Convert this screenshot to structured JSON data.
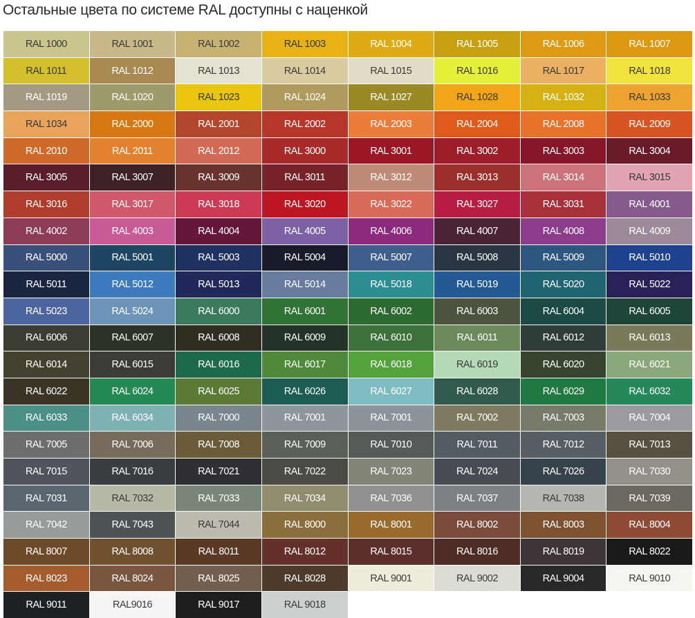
{
  "title": "Остальные цвета по системе RAL доступны с наценкой",
  "cells": [
    [
      "RAL 1000",
      "#c9c58c",
      1
    ],
    [
      "RAL 1001",
      "#c9b98a",
      1
    ],
    [
      "RAL 1002",
      "#c8b273",
      1
    ],
    [
      "RAL 1003",
      "#e8b216",
      1
    ],
    [
      "RAL 1004",
      "#dfab14",
      0
    ],
    [
      "RAL 1005",
      "#c6a011",
      0
    ],
    [
      "RAL 1006",
      "#dc9b13",
      0
    ],
    [
      "RAL 1007",
      "#de9710",
      0
    ],
    [
      "RAL 1011",
      "#d3c02c",
      1
    ],
    [
      "RAL 1012",
      "#a98852",
      0
    ],
    [
      "RAL 1013",
      "#e6e2d1",
      1
    ],
    [
      "RAL 1014",
      "#dacba0",
      1
    ],
    [
      "RAL 1015",
      "#e3dcc7",
      1
    ],
    [
      "RAL 1016",
      "#e5f03a",
      1
    ],
    [
      "RAL 1017",
      "#ecb063",
      1
    ],
    [
      "RAL 1018",
      "#f1e33c",
      1
    ],
    [
      "RAL 1019",
      "#a49a83",
      0
    ],
    [
      "RAL 1020",
      "#9d9a6c",
      0
    ],
    [
      "RAL 1023",
      "#eac612",
      1
    ],
    [
      "RAL 1024",
      "#b09a5e",
      0
    ],
    [
      "RAL 1027",
      "#9a8a26",
      0
    ],
    [
      "RAL 1028",
      "#f3a518",
      1
    ],
    [
      "RAL 1032",
      "#d6b114",
      0
    ],
    [
      "RAL 1033",
      "#eea331",
      1
    ],
    [
      "RAL 1034",
      "#e7a45a",
      1
    ],
    [
      "RAL 2000",
      "#d7770f",
      0
    ],
    [
      "RAL 2001",
      "#b4472b",
      0
    ],
    [
      "RAL 2002",
      "#b8352a",
      0
    ],
    [
      "RAL 2003",
      "#ec7c39",
      0
    ],
    [
      "RAL 2004",
      "#de5a1d",
      0
    ],
    [
      "RAL 2008",
      "#e9722a",
      0
    ],
    [
      "RAL 2009",
      "#d95423",
      0
    ],
    [
      "RAL 2010",
      "#d06a2b",
      0
    ],
    [
      "RAL 2011",
      "#e3812f",
      0
    ],
    [
      "RAL 2012",
      "#d26a55",
      0
    ],
    [
      "RAL 3000",
      "#a82a29",
      0
    ],
    [
      "RAL 3001",
      "#9b1726",
      0
    ],
    [
      "RAL 3002",
      "#9e1d2b",
      0
    ],
    [
      "RAL 3003",
      "#861527",
      0
    ],
    [
      "RAL 3004",
      "#6b1a2a",
      0
    ],
    [
      "RAL 3005",
      "#5a1e2a",
      0
    ],
    [
      "RAL 3007",
      "#3d2125",
      0
    ],
    [
      "RAL 3009",
      "#6a342e",
      0
    ],
    [
      "RAL 3011",
      "#772328",
      0
    ],
    [
      "RAL 3012",
      "#c08b76",
      0
    ],
    [
      "RAL 3013",
      "#9c2f2c",
      0
    ],
    [
      "RAL 3014",
      "#cc737a",
      0
    ],
    [
      "RAL 3015",
      "#e2a3b2",
      1
    ],
    [
      "RAL 3016",
      "#b03c2e",
      0
    ],
    [
      "RAL 3017",
      "#d1576a",
      0
    ],
    [
      "RAL 3018",
      "#cc3b53",
      0
    ],
    [
      "RAL 3020",
      "#be1522",
      0
    ],
    [
      "RAL 3022",
      "#d86a57",
      0
    ],
    [
      "RAL 3027",
      "#b71d42",
      0
    ],
    [
      "RAL 3031",
      "#a8303a",
      0
    ],
    [
      "RAL 4001",
      "#875a8e",
      0
    ],
    [
      "RAL 4002",
      "#8e3b55",
      0
    ],
    [
      "RAL 4003",
      "#c95a98",
      0
    ],
    [
      "RAL 4004",
      "#65173a",
      0
    ],
    [
      "RAL 4005",
      "#7d61a6",
      0
    ],
    [
      "RAL 4006",
      "#8e2a7e",
      0
    ],
    [
      "RAL 4007",
      "#4a2337",
      0
    ],
    [
      "RAL 4008",
      "#8b3d8c",
      0
    ],
    [
      "RAL 4009",
      "#9c8a98",
      0
    ],
    [
      "RAL 5000",
      "#38507a",
      0
    ],
    [
      "RAL 5001",
      "#1f4564",
      0
    ],
    [
      "RAL 5003",
      "#1f3160",
      0
    ],
    [
      "RAL 5004",
      "#1a1b2a",
      0
    ],
    [
      "RAL 5007",
      "#3e5f8e",
      0
    ],
    [
      "RAL 5008",
      "#2b3541",
      0
    ],
    [
      "RAL 5009",
      "#2d5780",
      0
    ],
    [
      "RAL 5010",
      "#1f4290",
      0
    ],
    [
      "RAL 5011",
      "#1a2542",
      0
    ],
    [
      "RAL 5012",
      "#3d7bbf",
      0
    ],
    [
      "RAL 5013",
      "#22295a",
      0
    ],
    [
      "RAL 5014",
      "#687ca0",
      0
    ],
    [
      "RAL 5018",
      "#2c8d92",
      0
    ],
    [
      "RAL 5019",
      "#235a93",
      0
    ],
    [
      "RAL 5020",
      "#1f6470",
      0
    ],
    [
      "RAL 5022",
      "#2b2159",
      0
    ],
    [
      "RAL 5023",
      "#4c659f",
      0
    ],
    [
      "RAL 5024",
      "#6e93b8",
      0
    ],
    [
      "RAL 6000",
      "#3a7a5d",
      0
    ],
    [
      "RAL 6001",
      "#2f7435",
      0
    ],
    [
      "RAL 6002",
      "#2d6a2f",
      0
    ],
    [
      "RAL 6003",
      "#4c5440",
      0
    ],
    [
      "RAL 6004",
      "#1b4a45",
      0
    ],
    [
      "RAL 6005",
      "#1d4637",
      0
    ],
    [
      "RAL 6006",
      "#3b3d33",
      0
    ],
    [
      "RAL 6007",
      "#2a3325",
      0
    ],
    [
      "RAL 6008",
      "#302e22",
      0
    ],
    [
      "RAL 6009",
      "#243327",
      0
    ],
    [
      "RAL 6010",
      "#3c7139",
      0
    ],
    [
      "RAL 6011",
      "#6a8a5c",
      0
    ],
    [
      "RAL 6012",
      "#2e3c3a",
      0
    ],
    [
      "RAL 6013",
      "#7a7a5a",
      0
    ],
    [
      "RAL 6014",
      "#45412f",
      0
    ],
    [
      "RAL 6015",
      "#3a3d35",
      0
    ],
    [
      "RAL 6016",
      "#1c6a4a",
      0
    ],
    [
      "RAL 6017",
      "#4e8a3a",
      0
    ],
    [
      "RAL 6018",
      "#52a33c",
      0
    ],
    [
      "RAL 6019",
      "#b5dab5",
      1
    ],
    [
      "RAL 6020",
      "#37452f",
      0
    ],
    [
      "RAL 6021",
      "#8aa77c",
      0
    ],
    [
      "RAL 6022",
      "#3a3427",
      0
    ],
    [
      "RAL 6024",
      "#248a53",
      0
    ],
    [
      "RAL 6025",
      "#5a7a36",
      0
    ],
    [
      "RAL 6026",
      "#1b5d52",
      0
    ],
    [
      "RAL 6027",
      "#7dbcc0",
      0
    ],
    [
      "RAL 6028",
      "#2f5a4c",
      0
    ],
    [
      "RAL 6029",
      "#1e7a41",
      0
    ],
    [
      "RAL 6032",
      "#24885a",
      0
    ],
    [
      "RAL 6033",
      "#4a9086",
      0
    ],
    [
      "RAL 6034",
      "#7db1b4",
      0
    ],
    [
      "RAL 7000",
      "#7b858d",
      0
    ],
    [
      "RAL 7001",
      "#8e969d",
      0
    ],
    [
      "RAL 7001",
      "#8c9399",
      0
    ],
    [
      "RAL 7002",
      "#7e7a60",
      0
    ],
    [
      "RAL 7003",
      "#797a69",
      0
    ],
    [
      "RAL 7004",
      "#9a9b9e",
      0
    ],
    [
      "RAL 7005",
      "#6b6e6b",
      0
    ],
    [
      "RAL 7006",
      "#776b5c",
      0
    ],
    [
      "RAL 7008",
      "#6c5b39",
      0
    ],
    [
      "RAL 7009",
      "#5a5f58",
      0
    ],
    [
      "RAL 7010",
      "#575b57",
      0
    ],
    [
      "RAL 7011",
      "#535b63",
      0
    ],
    [
      "RAL 7012",
      "#575e63",
      0
    ],
    [
      "RAL 7013",
      "#565141",
      0
    ],
    [
      "RAL 7015",
      "#50545b",
      0
    ],
    [
      "RAL 7016",
      "#383e42",
      0
    ],
    [
      "RAL 7021",
      "#2e3034",
      0
    ],
    [
      "RAL 7022",
      "#4c4a45",
      0
    ],
    [
      "RAL 7023",
      "#818679",
      0
    ],
    [
      "RAL 7024",
      "#474b52",
      0
    ],
    [
      "RAL 7026",
      "#37434a",
      0
    ],
    [
      "RAL 7030",
      "#929089",
      0
    ],
    [
      "RAL 7031",
      "#5b6770",
      0
    ],
    [
      "RAL 7032",
      "#b8b8a6",
      1
    ],
    [
      "RAL 7033",
      "#7a8677",
      0
    ],
    [
      "RAL 7034",
      "#908c6e",
      0
    ],
    [
      "RAL 7036",
      "#928f92",
      0
    ],
    [
      "RAL 7037",
      "#7e8184",
      0
    ],
    [
      "RAL 7038",
      "#b4b6b0",
      1
    ],
    [
      "RAL 7039",
      "#6b6860",
      0
    ],
    [
      "RAL 7042",
      "#979b9c",
      0
    ],
    [
      "RAL 7043",
      "#4e5356",
      0
    ],
    [
      "RAL 7044",
      "#bdbbb0",
      1
    ],
    [
      "RAL 8000",
      "#8b6e3c",
      0
    ],
    [
      "RAL 8001",
      "#9b6a2d",
      0
    ],
    [
      "RAL 8002",
      "#7a4b3b",
      0
    ],
    [
      "RAL 8003",
      "#7e5130",
      0
    ],
    [
      "RAL 8004",
      "#8f4a35",
      0
    ],
    [
      "RAL 8007",
      "#6e4a2a",
      0
    ],
    [
      "RAL 8008",
      "#6f5130",
      0
    ],
    [
      "RAL 8011",
      "#5a3a25",
      0
    ],
    [
      "RAL 8012",
      "#66302a",
      0
    ],
    [
      "RAL 8015",
      "#5d2f2b",
      0
    ],
    [
      "RAL 8016",
      "#4d2c24",
      0
    ],
    [
      "RAL 8019",
      "#3e3536",
      0
    ],
    [
      "RAL 8022",
      "#1b1818",
      0
    ],
    [
      "RAL 8023",
      "#a45c2d",
      0
    ],
    [
      "RAL 8024",
      "#7a5640",
      0
    ],
    [
      "RAL 8025",
      "#745e4d",
      0
    ],
    [
      "RAL 8028",
      "#4e3b2b",
      0
    ],
    [
      "RAL 9001",
      "#f0ecdc",
      1
    ],
    [
      "RAL 9002",
      "#dcdcd4",
      1
    ],
    [
      "RAL 9004",
      "#282829",
      0
    ],
    [
      "RAL 9010",
      "#f5f4ee",
      1
    ],
    [
      "RAL 9011",
      "#1e2126",
      0
    ],
    [
      "RAL9016",
      "#f4f5f6",
      1
    ],
    [
      "RAL 9017",
      "#1e1d20",
      0
    ],
    [
      "RAL 9018",
      "#cdd1cd",
      1
    ]
  ]
}
